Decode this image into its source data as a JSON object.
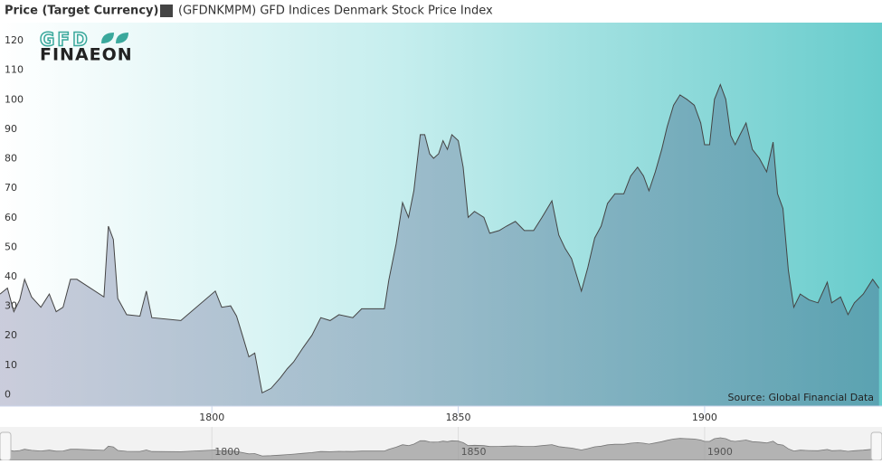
{
  "logo": {
    "top": "GFD",
    "bottom": "FINAEON"
  },
  "chart_data": {
    "type": "area",
    "title": "Price (Target Currency)",
    "source": "Source: Global Financial Data",
    "series": [
      {
        "name": "(GFDNKMPM) GFD Indices Denmark Stock Price Index",
        "color": "#444444",
        "x": [
          1757,
          1758.5,
          1759.8,
          1761,
          1762,
          1763.4,
          1765.3,
          1767,
          1768.4,
          1769.8,
          1771.3,
          1772.6,
          1778.1,
          1779,
          1780,
          1780.9,
          1782.7,
          1785.4,
          1786.7,
          1787.8,
          1793.7,
          1800.7,
          1802,
          1803.8,
          1805,
          1806.2,
          1807.5,
          1808.7,
          1810.2,
          1812,
          1813.9,
          1815.3,
          1816.6,
          1818.5,
          1820.3,
          1822.1,
          1824,
          1825.8,
          1828.6,
          1830.4,
          1835,
          1835.9,
          1837.4,
          1838.7,
          1839.9,
          1841,
          1842.3,
          1843.2,
          1844.2,
          1845,
          1846,
          1846.9,
          1847.8,
          1848.7,
          1850,
          1851,
          1852,
          1853.3,
          1855.2,
          1856.4,
          1858.3,
          1859.8,
          1861.6,
          1863.4,
          1865.3,
          1867,
          1869,
          1870.4,
          1871.7,
          1873,
          1875,
          1876.3,
          1877.7,
          1879,
          1880.3,
          1881.8,
          1883.6,
          1885,
          1886.4,
          1887.6,
          1888.7,
          1890,
          1891.3,
          1892.4,
          1893.7,
          1895,
          1896.4,
          1897.9,
          1899.2,
          1900,
          1901,
          1902,
          1903.2,
          1904.3,
          1905.3,
          1906.2,
          1907.1,
          1908.4,
          1909.7,
          1911.1,
          1912.6,
          1913.9,
          1914.8,
          1915.9,
          1917,
          1918.1,
          1919.4,
          1921.2,
          1923,
          1924.9,
          1925.8,
          1927.6,
          1929.1,
          1930.4,
          1932.2,
          1934.1,
          1935.4
        ],
        "values": [
          36,
          38,
          30,
          34,
          41,
          35,
          31.5,
          36,
          30,
          31.5,
          41,
          41,
          35,
          59,
          54.5,
          34.5,
          29,
          28.5,
          37,
          28,
          27,
          37,
          31.5,
          32,
          28.5,
          22,
          14.7,
          16,
          2.5,
          4,
          7.6,
          10.7,
          13,
          17.8,
          22,
          28,
          27,
          29,
          28,
          31,
          31,
          40.7,
          53,
          67,
          62,
          71,
          90,
          90,
          83.5,
          82,
          83.5,
          88,
          85,
          90,
          88,
          79,
          62,
          64,
          62,
          56.6,
          57.5,
          59,
          60.6,
          57.5,
          57.5,
          62,
          67.6,
          56,
          51.4,
          48,
          37,
          45,
          55,
          59,
          66.7,
          70,
          70,
          76,
          79,
          76,
          71,
          77.4,
          85,
          92.7,
          100,
          103.5,
          102,
          100,
          94,
          86.6,
          86.6,
          102,
          107,
          102,
          89.7,
          86.6,
          89.7,
          94,
          85,
          82,
          77.4,
          87.5,
          70,
          65,
          44,
          31.5,
          36,
          34,
          33,
          40,
          33,
          35,
          29,
          33,
          36,
          41,
          38
        ]
      }
    ],
    "xlim": [
      1757,
      1936
    ],
    "ylim": [
      -2,
      128
    ],
    "xticks": [
      1800,
      1850,
      1900
    ],
    "yticks": [
      0,
      10,
      20,
      30,
      40,
      50,
      60,
      70,
      80,
      90,
      100,
      110,
      120
    ]
  }
}
